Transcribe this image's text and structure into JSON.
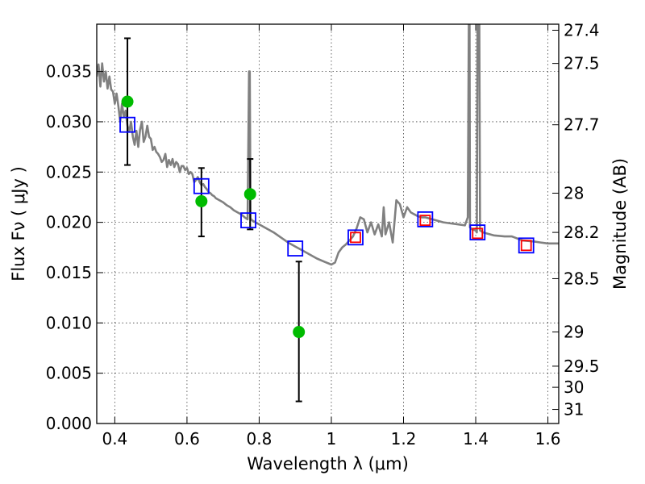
{
  "chart_data": {
    "type": "line",
    "xlabel": "Wavelength  λ (μm)",
    "ylabel": "Flux  Fν  ( μJy )",
    "ylabel_right": "Magnitude (AB)",
    "xlim": [
      0.35,
      1.63
    ],
    "ylim": [
      0.0,
      0.0397
    ],
    "x_ticks": [
      0.4,
      0.6,
      0.8,
      1.0,
      1.2,
      1.4,
      1.6
    ],
    "x_tick_labels": [
      "0.4",
      "0.6",
      "0.8",
      "1",
      "1.2",
      "1.4",
      "1.6"
    ],
    "y_ticks": [
      0.0,
      0.005,
      0.01,
      0.015,
      0.02,
      0.025,
      0.03,
      0.035
    ],
    "y_tick_labels": [
      "0.000",
      "0.005",
      "0.010",
      "0.015",
      "0.020",
      "0.025",
      "0.030",
      "0.035"
    ],
    "right_ticks": [
      {
        "flux": 0.0391,
        "label": "27.4"
      },
      {
        "flux": 0.0358,
        "label": "27.5"
      },
      {
        "flux": 0.0297,
        "label": "27.7"
      },
      {
        "flux": 0.0229,
        "label": "28"
      },
      {
        "flux": 0.019,
        "label": "28.2"
      },
      {
        "flux": 0.0144,
        "label": "28.5"
      },
      {
        "flux": 0.0091,
        "label": "29"
      },
      {
        "flux": 0.0057,
        "label": "29.5"
      },
      {
        "flux": 0.0036,
        "label": "30"
      },
      {
        "flux": 0.0014,
        "label": "31"
      }
    ],
    "grid": true,
    "series": [
      {
        "kind": "line",
        "color": "#808080",
        "points": [
          [
            0.35,
            0.0345
          ],
          [
            0.355,
            0.0357
          ],
          [
            0.36,
            0.0335
          ],
          [
            0.365,
            0.0358
          ],
          [
            0.37,
            0.034
          ],
          [
            0.375,
            0.035
          ],
          [
            0.38,
            0.0333
          ],
          [
            0.385,
            0.0345
          ],
          [
            0.39,
            0.0332
          ],
          [
            0.395,
            0.033
          ],
          [
            0.4,
            0.0318
          ],
          [
            0.405,
            0.0328
          ],
          [
            0.41,
            0.0315
          ],
          [
            0.415,
            0.03
          ],
          [
            0.42,
            0.0318
          ],
          [
            0.425,
            0.0305
          ],
          [
            0.43,
            0.0311
          ],
          [
            0.435,
            0.0296
          ],
          [
            0.44,
            0.029
          ],
          [
            0.445,
            0.03
          ],
          [
            0.45,
            0.0285
          ],
          [
            0.455,
            0.0277
          ],
          [
            0.46,
            0.0291
          ],
          [
            0.465,
            0.0275
          ],
          [
            0.47,
            0.0292
          ],
          [
            0.475,
            0.03
          ],
          [
            0.48,
            0.028
          ],
          [
            0.485,
            0.0285
          ],
          [
            0.49,
            0.0296
          ],
          [
            0.495,
            0.0285
          ],
          [
            0.5,
            0.0283
          ],
          [
            0.505,
            0.0272
          ],
          [
            0.51,
            0.0275
          ],
          [
            0.515,
            0.027
          ],
          [
            0.52,
            0.0268
          ],
          [
            0.525,
            0.0265
          ],
          [
            0.53,
            0.026
          ],
          [
            0.535,
            0.0262
          ],
          [
            0.54,
            0.0268
          ],
          [
            0.545,
            0.0255
          ],
          [
            0.55,
            0.0262
          ],
          [
            0.555,
            0.0257
          ],
          [
            0.56,
            0.0263
          ],
          [
            0.565,
            0.0255
          ],
          [
            0.57,
            0.026
          ],
          [
            0.575,
            0.0258
          ],
          [
            0.58,
            0.025
          ],
          [
            0.585,
            0.0256
          ],
          [
            0.59,
            0.0256
          ],
          [
            0.595,
            0.0252
          ],
          [
            0.6,
            0.0254
          ],
          [
            0.605,
            0.0248
          ],
          [
            0.61,
            0.025
          ],
          [
            0.615,
            0.0248
          ],
          [
            0.62,
            0.024
          ],
          [
            0.625,
            0.0242
          ],
          [
            0.63,
            0.0245
          ],
          [
            0.635,
            0.024
          ],
          [
            0.64,
            0.0237
          ],
          [
            0.645,
            0.0238
          ],
          [
            0.65,
            0.0235
          ],
          [
            0.655,
            0.0233
          ],
          [
            0.66,
            0.023
          ],
          [
            0.665,
            0.0229
          ],
          [
            0.67,
            0.0227
          ],
          [
            0.675,
            0.0226
          ],
          [
            0.68,
            0.0224
          ],
          [
            0.69,
            0.0222
          ],
          [
            0.7,
            0.022
          ],
          [
            0.71,
            0.0217
          ],
          [
            0.72,
            0.0215
          ],
          [
            0.73,
            0.0212
          ],
          [
            0.74,
            0.021
          ],
          [
            0.75,
            0.0208
          ],
          [
            0.76,
            0.0205
          ],
          [
            0.768,
            0.0203
          ],
          [
            0.772,
            0.035
          ],
          [
            0.774,
            0.035
          ],
          [
            0.776,
            0.0204
          ],
          [
            0.78,
            0.0202
          ],
          [
            0.8,
            0.0198
          ],
          [
            0.82,
            0.0194
          ],
          [
            0.84,
            0.019
          ],
          [
            0.86,
            0.0185
          ],
          [
            0.88,
            0.018
          ],
          [
            0.9,
            0.0176
          ],
          [
            0.92,
            0.0172
          ],
          [
            0.94,
            0.0168
          ],
          [
            0.96,
            0.0164
          ],
          [
            0.98,
            0.0161
          ],
          [
            1.0,
            0.0158
          ],
          [
            1.01,
            0.016
          ],
          [
            1.02,
            0.017
          ],
          [
            1.03,
            0.0175
          ],
          [
            1.04,
            0.0178
          ],
          [
            1.05,
            0.0182
          ],
          [
            1.06,
            0.0186
          ],
          [
            1.07,
            0.0194
          ],
          [
            1.08,
            0.0205
          ],
          [
            1.09,
            0.0203
          ],
          [
            1.1,
            0.019
          ],
          [
            1.11,
            0.02
          ],
          [
            1.12,
            0.0188
          ],
          [
            1.13,
            0.0198
          ],
          [
            1.14,
            0.0186
          ],
          [
            1.145,
            0.0215
          ],
          [
            1.15,
            0.0188
          ],
          [
            1.16,
            0.02
          ],
          [
            1.17,
            0.018
          ],
          [
            1.18,
            0.0222
          ],
          [
            1.19,
            0.0218
          ],
          [
            1.2,
            0.0205
          ],
          [
            1.21,
            0.0215
          ],
          [
            1.22,
            0.021
          ],
          [
            1.23,
            0.0208
          ],
          [
            1.24,
            0.0206
          ],
          [
            1.25,
            0.0205
          ],
          [
            1.26,
            0.0205
          ],
          [
            1.27,
            0.0204
          ],
          [
            1.29,
            0.0202
          ],
          [
            1.31,
            0.02
          ],
          [
            1.33,
            0.0199
          ],
          [
            1.35,
            0.0198
          ],
          [
            1.37,
            0.0197
          ],
          [
            1.378,
            0.0205
          ],
          [
            1.381,
            0.04
          ],
          [
            1.383,
            0.04
          ],
          [
            1.384,
            0.0195
          ],
          [
            1.39,
            0.0193
          ],
          [
            1.4,
            0.0192
          ],
          [
            1.403,
            0.019
          ],
          [
            1.405,
            0.04
          ],
          [
            1.41,
            0.04
          ],
          [
            1.412,
            0.0192
          ],
          [
            1.42,
            0.019
          ],
          [
            1.45,
            0.0187
          ],
          [
            1.48,
            0.0186
          ],
          [
            1.5,
            0.0186
          ],
          [
            1.53,
            0.0182
          ],
          [
            1.56,
            0.0181
          ],
          [
            1.58,
            0.018
          ],
          [
            1.6,
            0.0179
          ],
          [
            1.63,
            0.0179
          ]
        ]
      },
      {
        "kind": "errorbar",
        "color": "#000000",
        "points": [
          {
            "x": 0.435,
            "lo": 0.0257,
            "hi": 0.0383
          },
          {
            "x": 0.64,
            "lo": 0.0186,
            "hi": 0.0254
          },
          {
            "x": 0.775,
            "lo": 0.0193,
            "hi": 0.0263
          },
          {
            "x": 0.91,
            "lo": 0.0022,
            "hi": 0.0161
          }
        ]
      },
      {
        "kind": "square_marker",
        "color": "#0000ff",
        "points": [
          [
            0.435,
            0.0297
          ],
          [
            0.64,
            0.0236
          ],
          [
            0.77,
            0.0202
          ],
          [
            0.9,
            0.0174
          ],
          [
            1.067,
            0.0185
          ],
          [
            1.26,
            0.0203
          ],
          [
            1.405,
            0.019
          ],
          [
            1.54,
            0.0177
          ]
        ]
      },
      {
        "kind": "square_marker",
        "color": "#ff0000",
        "points": [
          [
            1.067,
            0.0185
          ],
          [
            1.26,
            0.0202
          ],
          [
            1.405,
            0.0189
          ],
          [
            1.54,
            0.0177
          ]
        ]
      },
      {
        "kind": "circle_marker",
        "color": "#00bb00",
        "points": [
          [
            0.435,
            0.032
          ],
          [
            0.64,
            0.0221
          ],
          [
            0.775,
            0.0228
          ],
          [
            0.91,
            0.0091
          ]
        ]
      }
    ]
  }
}
